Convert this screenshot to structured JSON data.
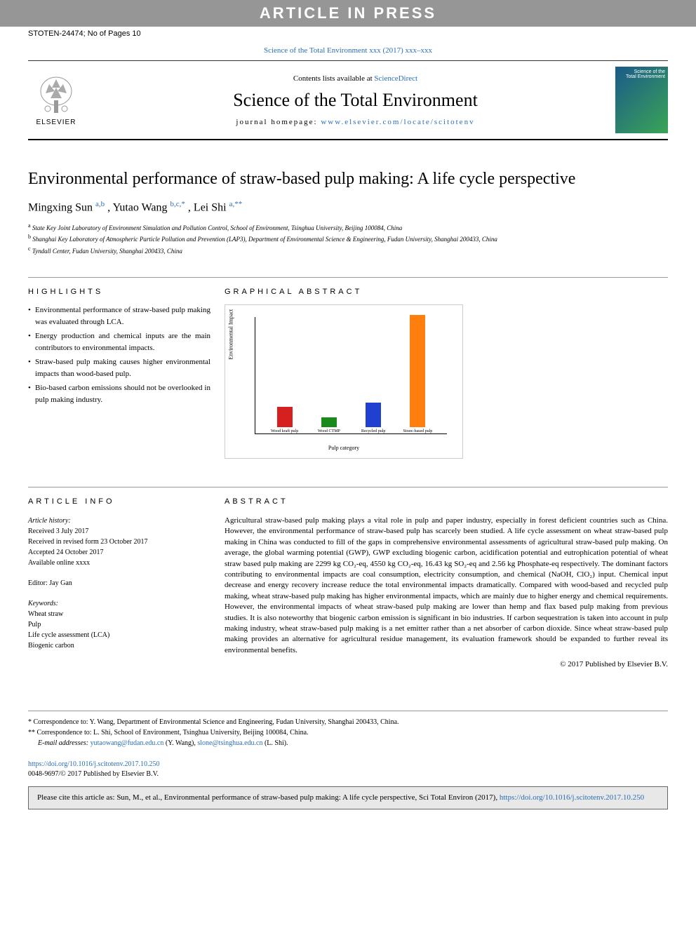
{
  "banner": {
    "text": "ARTICLE IN PRESS"
  },
  "stoten": "STOTEN-24474; No of Pages 10",
  "journal_ref": "Science of the Total Environment xxx (2017) xxx–xxx",
  "header": {
    "elsevier_label": "ELSEVIER",
    "contents_prefix": "Contents lists available at ",
    "contents_link": "ScienceDirect",
    "journal_name": "Science of the Total Environment",
    "homepage_prefix": "journal homepage: ",
    "homepage_url": "www.elsevier.com/locate/scitotenv",
    "cover_line1": "Science of the",
    "cover_line2": "Total Environment"
  },
  "title": "Environmental performance of straw-based pulp making: A life cycle perspective",
  "authors": [
    {
      "name": "Mingxing Sun ",
      "aff": "a,b"
    },
    {
      "name": ", Yutao Wang ",
      "aff": "b,c,*"
    },
    {
      "name": ", Lei Shi ",
      "aff": "a,**"
    }
  ],
  "affiliations": [
    {
      "sup": "a",
      "text": " State Key Joint Laboratory of Environment Simulation and Pollution Control, School of Environment, Tsinghua University, Beijing 100084, China"
    },
    {
      "sup": "b",
      "text": " Shanghai Key Laboratory of Atmospheric Particle Pollution and Prevention (LAP3), Department of Environmental Science & Engineering, Fudan University, Shanghai 200433, China"
    },
    {
      "sup": "c",
      "text": " Tyndall Center, Fudan University, Shanghai 200433, China"
    }
  ],
  "highlights_heading": "HIGHLIGHTS",
  "highlights": [
    "Environmental performance of straw-based pulp making was evaluated through LCA.",
    "Energy production and chemical inputs are the main contributors to environmental impacts.",
    "Straw-based pulp making causes higher environmental impacts than wood-based pulp.",
    "Bio-based carbon emissions should not be overlooked in pulp making industry."
  ],
  "graphical_heading": "GRAPHICAL ABSTRACT",
  "chart": {
    "type": "bar",
    "y_label": "Environmental Impact",
    "x_label": "Pulp category",
    "categories": [
      "Wood kraft pulp",
      "Wood CTMP",
      "Recycled pulp",
      "Straw-based pulp"
    ],
    "values": [
      18,
      9,
      22,
      100
    ],
    "bar_colors": [
      "#d62020",
      "#1a8a1a",
      "#2040d0",
      "#ff7f0e"
    ],
    "background_color": "#ffffff",
    "border_color": "#cccccc",
    "axis_color": "#000000",
    "label_fontsize": 8,
    "tick_fontsize": 6
  },
  "article_info_heading": "ARTICLE INFO",
  "history_label": "Article history:",
  "history": [
    "Received 3 July 2017",
    "Received in revised form 23 October 2017",
    "Accepted 24 October 2017",
    "Available online xxxx"
  ],
  "editor_line": "Editor: Jay Gan",
  "keywords_label": "Keywords:",
  "keywords": [
    "Wheat straw",
    "Pulp",
    "Life cycle assessment (LCA)",
    "Biogenic carbon"
  ],
  "abstract_heading": "ABSTRACT",
  "abstract": "Agricultural straw-based pulp making plays a vital role in pulp and paper industry, especially in forest deficient countries such as China. However, the environmental performance of straw-based pulp has scarcely been studied. A life cycle assessment on wheat straw-based pulp making in China was conducted to fill of the gaps in comprehensive environmental assessments of agricultural straw-based pulp making. On average, the global warming potential (GWP), GWP excluding biogenic carbon, acidification potential and eutrophication potential of wheat straw based pulp making are 2299 kg CO₂-eq, 4550 kg CO₂-eq, 16.43 kg SO₂-eq and 2.56 kg Phosphate-eq respectively. The dominant factors contributing to environmental impacts are coal consumption, electricity consumption, and chemical (NaOH, ClO₂) input. Chemical input decrease and energy recovery increase reduce the total environmental impacts dramatically. Compared with wood-based and recycled pulp making, wheat straw-based pulp making has higher environmental impacts, which are mainly due to higher energy and chemical requirements. However, the environmental impacts of wheat straw-based pulp making are lower than hemp and flax based pulp making from previous studies. It is also noteworthy that biogenic carbon emission is significant in bio industries. If carbon sequestration is taken into account in pulp making industry, wheat straw-based pulp making is a net emitter rather than a net absorber of carbon dioxide. Since wheat straw-based pulp making provides an alternative for agricultural residue management, its evaluation framework should be expanded to further reveal its environmental benefits.",
  "copyright": "© 2017 Published by Elsevier B.V.",
  "correspondence": [
    {
      "mark": "*",
      "text": " Correspondence to: Y. Wang, Department of Environmental Science and Engineering, Fudan University, Shanghai 200433, China."
    },
    {
      "mark": "**",
      "text": " Correspondence to: L. Shi, School of Environment, Tsinghua University, Beijing 100084, China."
    }
  ],
  "emails_label": "E-mail addresses: ",
  "emails": [
    {
      "addr": "yutaowang@fudan.edu.cn",
      "who": " (Y. Wang), "
    },
    {
      "addr": "slone@tsinghua.edu.cn",
      "who": " (L. Shi)."
    }
  ],
  "doi": {
    "url": "https://doi.org/10.1016/j.scitotenv.2017.10.250",
    "issn_line": "0048-9697/© 2017 Published by Elsevier B.V."
  },
  "citation": {
    "prefix": "Please cite this article as: Sun, M., et al., Environmental performance of straw-based pulp making: A life cycle perspective, Sci Total Environ (2017), ",
    "url": "https://doi.org/10.1016/j.scitotenv.2017.10.250"
  }
}
